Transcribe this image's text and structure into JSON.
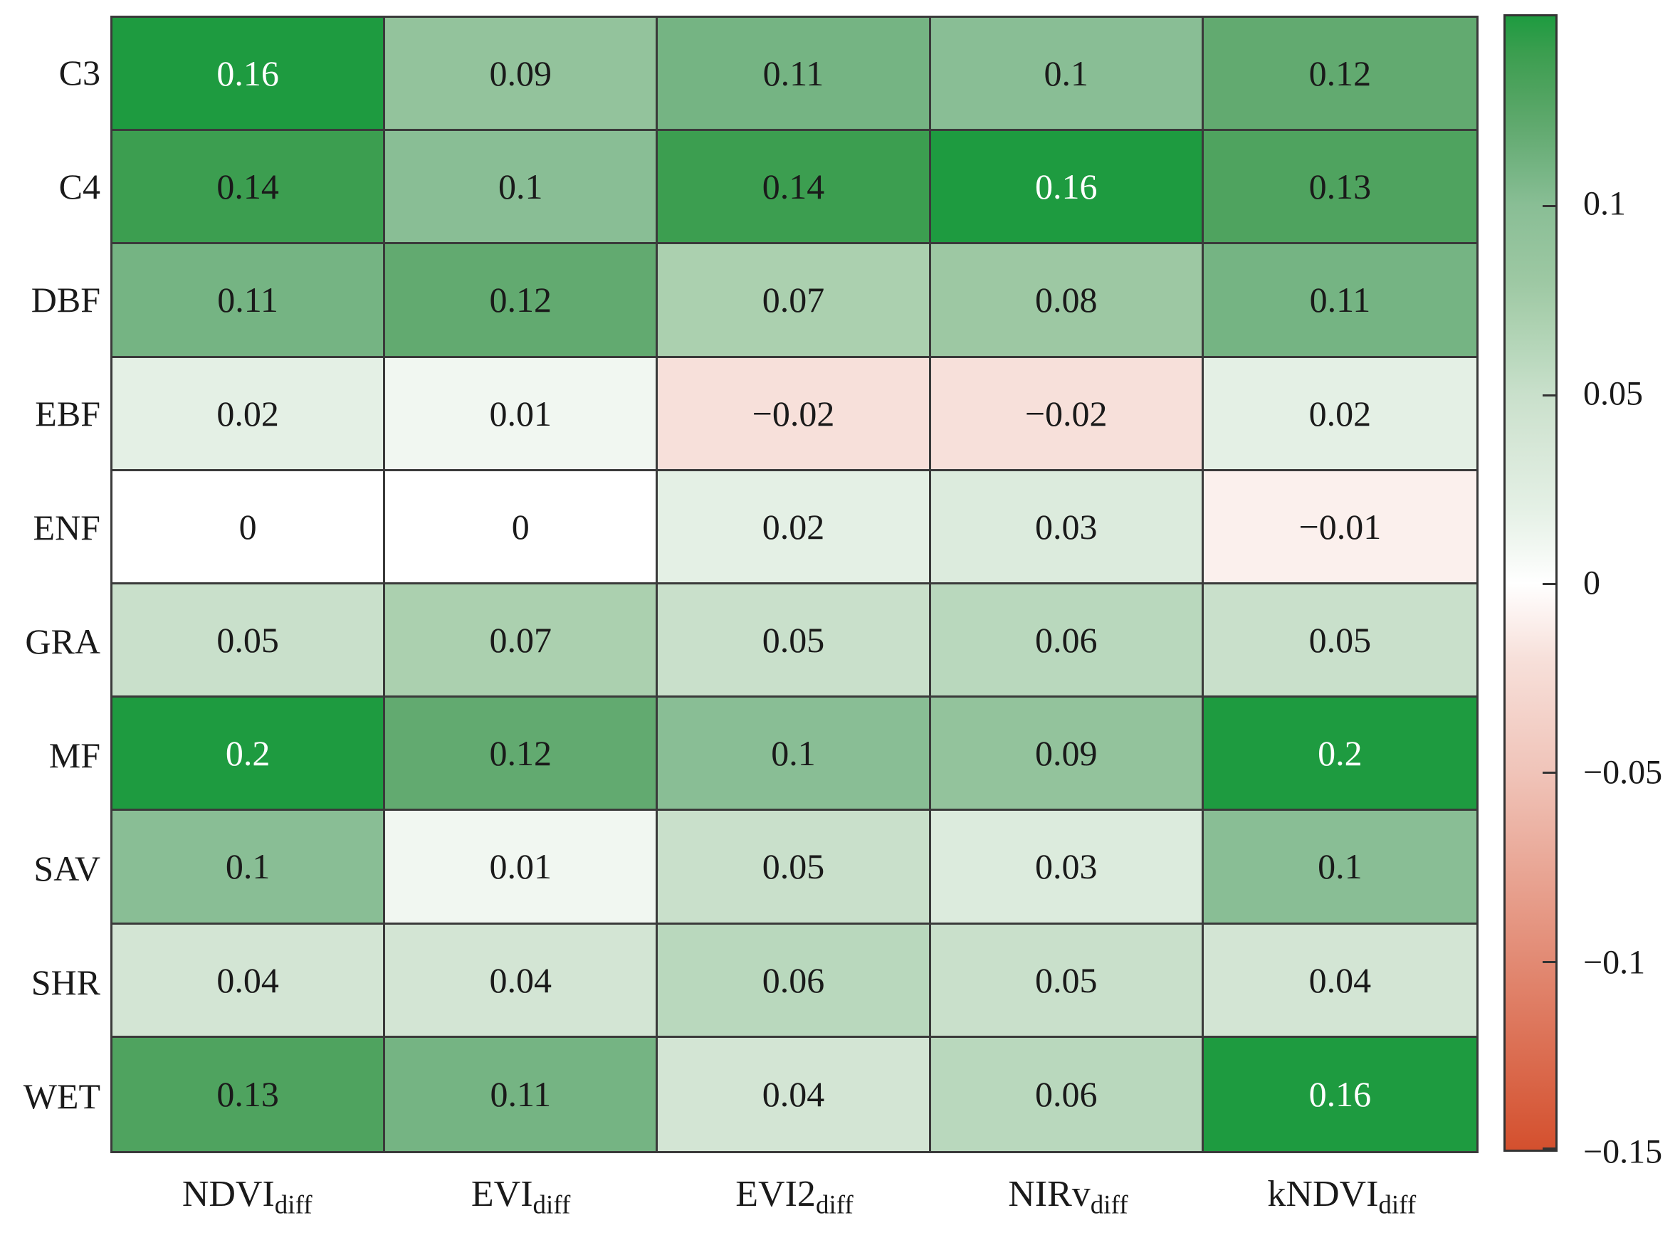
{
  "chart_data": {
    "type": "heatmap",
    "rows": [
      "C3",
      "C4",
      "DBF",
      "EBF",
      "ENF",
      "GRA",
      "MF",
      "SAV",
      "SHR",
      "WET"
    ],
    "columns": [
      {
        "base": "NDVI",
        "sub": "diff"
      },
      {
        "base": "EVI",
        "sub": "diff"
      },
      {
        "base": "EVI2",
        "sub": "diff"
      },
      {
        "base": "NIRv",
        "sub": "diff"
      },
      {
        "base": "kNDVI",
        "sub": "diff"
      }
    ],
    "values": [
      [
        0.16,
        0.09,
        0.11,
        0.1,
        0.12
      ],
      [
        0.14,
        0.1,
        0.14,
        0.16,
        0.13
      ],
      [
        0.11,
        0.12,
        0.07,
        0.08,
        0.11
      ],
      [
        0.02,
        0.01,
        -0.02,
        -0.02,
        0.02
      ],
      [
        0,
        0,
        0.02,
        0.03,
        -0.01
      ],
      [
        0.05,
        0.07,
        0.05,
        0.06,
        0.05
      ],
      [
        0.2,
        0.12,
        0.1,
        0.09,
        0.2
      ],
      [
        0.1,
        0.01,
        0.05,
        0.03,
        0.1
      ],
      [
        0.04,
        0.04,
        0.06,
        0.05,
        0.04
      ],
      [
        0.13,
        0.11,
        0.04,
        0.06,
        0.16
      ]
    ],
    "white_text_threshold": 0.15,
    "text_color": "#1a1a1a",
    "white_text_color": "#ffffff",
    "grid_line_color": "#3a3a3a",
    "colorbar": {
      "min": -0.15,
      "max": 0.15,
      "ticks": [
        {
          "value": 0.1,
          "label": "0.1"
        },
        {
          "value": 0.05,
          "label": "0.05"
        },
        {
          "value": 0,
          "label": "0"
        },
        {
          "value": -0.05,
          "label": "−0.05"
        },
        {
          "value": -0.1,
          "label": "−0.1"
        },
        {
          "value": -0.15,
          "label": "−0.15"
        }
      ]
    },
    "colormap": {
      "name": "red-white-green-diverging",
      "stops": [
        [
          -0.15,
          "#D4502E"
        ],
        [
          -0.05,
          "#F0C4B9"
        ],
        [
          -0.02,
          "#F7E0DA"
        ],
        [
          0.0,
          "#FFFFFF"
        ],
        [
          0.01,
          "#F1F7F1"
        ],
        [
          0.02,
          "#E4F0E5"
        ],
        [
          0.04,
          "#D3E5D4"
        ],
        [
          0.05,
          "#C9E0CB"
        ],
        [
          0.06,
          "#B9D8BD"
        ],
        [
          0.07,
          "#ABD0AF"
        ],
        [
          0.08,
          "#9DC8A3"
        ],
        [
          0.09,
          "#93C39C"
        ],
        [
          0.1,
          "#89BE95"
        ],
        [
          0.11,
          "#75B483"
        ],
        [
          0.12,
          "#62AA70"
        ],
        [
          0.13,
          "#4FA35F"
        ],
        [
          0.14,
          "#3C9E50"
        ],
        [
          0.15,
          "#1E9B40"
        ]
      ]
    }
  }
}
